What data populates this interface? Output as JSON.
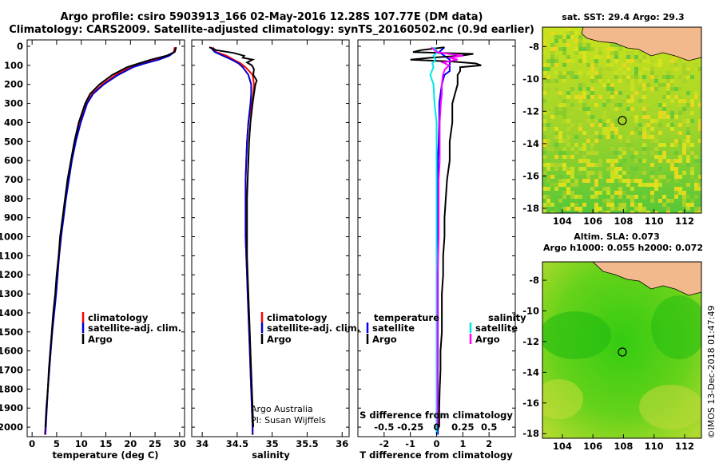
{
  "header": {
    "title_line1": "Argo profile: csiro 5903913_166 02-May-2016 12.28S 107.77E (DM data)",
    "title_line2": "Climatology: CARS2009. Satellite-adjusted climatology: synTS_20160502.nc (0.9d earlier)"
  },
  "credit": {
    "institution_stamp": "©IMOS 13-Dec-2018 01:47:49",
    "note_line1": "Argo Australia",
    "note_line2": "PI: Susan Wijffels"
  },
  "colors": {
    "climatology": "#ff0000",
    "satellite": "#0000cc",
    "argo": "#000000",
    "t_satellite": "#0000ff",
    "s_satellite": "#00e5e5",
    "s_argo": "#ff00ff",
    "land": "#f2b98c",
    "float_marker": "#4a7a2a"
  },
  "chart_data": [
    {
      "type": "line",
      "id": "temperature-profile",
      "xlabel": "temperature (deg C)",
      "ylabel": "",
      "xlim": [
        -1,
        31
      ],
      "ylim": [
        2050,
        0
      ],
      "xticks": [
        0,
        5,
        10,
        15,
        20,
        25,
        30
      ],
      "yticks": [
        0,
        100,
        200,
        300,
        400,
        500,
        600,
        700,
        800,
        900,
        1000,
        1100,
        1200,
        1300,
        1400,
        1500,
        1600,
        1700,
        1800,
        1900,
        2000
      ],
      "legend": [
        "climatology",
        "satellite-adj. clim.",
        "Argo"
      ],
      "series": [
        {
          "name": "climatology",
          "color_key": "climatology",
          "depth": [
            5,
            30,
            50,
            70,
            90,
            110,
            150,
            200,
            250,
            300,
            400,
            500,
            600,
            700,
            800,
            900,
            1000,
            1100,
            1200,
            1300,
            1400,
            1500,
            1600,
            1700,
            1800,
            1900,
            2000,
            2040
          ],
          "values": [
            29.0,
            28.8,
            27.6,
            25.3,
            22.4,
            20.0,
            17.0,
            14.3,
            12.2,
            11.1,
            9.8,
            8.8,
            8.0,
            7.4,
            6.8,
            6.3,
            5.9,
            5.5,
            5.1,
            4.8,
            4.4,
            4.1,
            3.8,
            3.5,
            3.2,
            3.0,
            2.7,
            2.6
          ]
        },
        {
          "name": "satellite-adj. clim.",
          "color_key": "satellite",
          "depth": [
            5,
            30,
            50,
            70,
            90,
            110,
            150,
            200,
            250,
            300,
            400,
            500,
            600,
            700,
            800,
            900,
            1000,
            1100,
            1200,
            1300,
            1400,
            1500,
            1600,
            1700,
            1800,
            1900,
            2000,
            2040
          ],
          "values": [
            29.3,
            28.9,
            27.9,
            25.8,
            22.9,
            20.5,
            17.5,
            14.6,
            12.4,
            11.2,
            9.9,
            8.9,
            8.1,
            7.5,
            6.9,
            6.4,
            5.9,
            5.5,
            5.2,
            4.9,
            4.5,
            4.1,
            3.8,
            3.5,
            3.2,
            3.0,
            2.8,
            2.7
          ]
        },
        {
          "name": "Argo",
          "color_key": "argo",
          "depth": [
            5,
            30,
            50,
            70,
            90,
            110,
            150,
            200,
            250,
            300,
            400,
            500,
            600,
            700,
            800,
            900,
            1000,
            1100,
            1200,
            1300,
            1400,
            1500,
            1600,
            1700,
            1800,
            1900,
            2000
          ],
          "values": [
            29.3,
            29.0,
            27.3,
            24.2,
            21.7,
            19.3,
            16.3,
            13.7,
            11.8,
            10.8,
            9.5,
            8.6,
            7.9,
            7.2,
            6.7,
            6.2,
            5.7,
            5.4,
            5.0,
            4.7,
            4.3,
            4.0,
            3.7,
            3.4,
            3.2,
            2.9,
            2.7
          ]
        }
      ]
    },
    {
      "type": "line",
      "id": "salinity-profile",
      "xlabel": "salinity",
      "ylabel": "",
      "xlim": [
        33.85,
        36.1
      ],
      "ylim": [
        2050,
        0
      ],
      "xticks": [
        34,
        34.5,
        35,
        35.5,
        36
      ],
      "legend": [
        "climatology",
        "satellite-adj. clim.",
        "Argo"
      ],
      "series": [
        {
          "name": "climatology",
          "color_key": "climatology",
          "depth": [
            5,
            30,
            50,
            70,
            90,
            110,
            150,
            200,
            250,
            300,
            400,
            500,
            600,
            700,
            800,
            900,
            1000,
            1100,
            1200,
            1300,
            1400,
            1500,
            1600,
            1700,
            1800,
            1900,
            2000,
            2040
          ],
          "values": [
            34.15,
            34.2,
            34.35,
            34.45,
            34.55,
            34.62,
            34.72,
            34.74,
            34.73,
            34.71,
            34.66,
            34.64,
            34.63,
            34.62,
            34.62,
            34.62,
            34.62,
            34.63,
            34.64,
            34.65,
            34.66,
            34.67,
            34.68,
            34.69,
            34.7,
            34.71,
            34.72,
            34.72
          ]
        },
        {
          "name": "satellite-adj. clim.",
          "color_key": "satellite",
          "depth": [
            5,
            30,
            50,
            70,
            90,
            110,
            150,
            200,
            250,
            300,
            400,
            500,
            600,
            700,
            800,
            900,
            1000,
            1100,
            1200,
            1300,
            1400,
            1500,
            1600,
            1700,
            1800,
            1900,
            2000,
            2040
          ],
          "values": [
            34.12,
            34.18,
            34.3,
            34.42,
            34.52,
            34.58,
            34.66,
            34.7,
            34.7,
            34.69,
            34.66,
            34.64,
            34.63,
            34.62,
            34.62,
            34.62,
            34.62,
            34.63,
            34.64,
            34.65,
            34.66,
            34.67,
            34.68,
            34.69,
            34.7,
            34.71,
            34.72,
            34.72
          ]
        },
        {
          "name": "Argo",
          "color_key": "argo",
          "depth": [
            5,
            20,
            35,
            50,
            60,
            70,
            85,
            100,
            120,
            150,
            180,
            200,
            250,
            300,
            400,
            500,
            600,
            700,
            800,
            900,
            1000,
            1100,
            1200,
            1300,
            1400,
            1500,
            1600,
            1700,
            1800,
            1900,
            2000
          ],
          "values": [
            34.1,
            34.2,
            34.45,
            34.6,
            34.58,
            34.72,
            34.64,
            34.71,
            34.74,
            34.73,
            34.78,
            34.76,
            34.74,
            34.72,
            34.69,
            34.67,
            34.66,
            34.65,
            34.64,
            34.64,
            34.64,
            34.64,
            34.65,
            34.66,
            34.67,
            34.68,
            34.69,
            34.7,
            34.71,
            34.72,
            34.73
          ]
        }
      ]
    },
    {
      "type": "line",
      "id": "difference-profile",
      "xlabel": "T difference from climatology",
      "xlabel_top": "S difference from climatology",
      "xlim": [
        -3,
        3
      ],
      "ylim": [
        2050,
        0
      ],
      "xticks": [
        -2,
        -1,
        0,
        1,
        2
      ],
      "s_xticks_labels": [
        "-0.5",
        "-0.25",
        "0",
        "0.25",
        "0.5"
      ],
      "s_xticks_values": [
        -0.5,
        -0.25,
        0,
        0.25,
        0.5
      ],
      "s_xlim": [
        -0.75,
        0.75
      ],
      "legend_temperature_title": "temperature",
      "legend_salinity_title": "salinity",
      "legend_temperature": [
        "satellite",
        "Argo"
      ],
      "legend_salinity": [
        "satellite",
        "Argo"
      ],
      "series": [
        {
          "name": "satellite",
          "group": "temperature",
          "color_key": "t_satellite",
          "depth": [
            5,
            30,
            50,
            70,
            90,
            110,
            130,
            150,
            200,
            250,
            300,
            400,
            500,
            600,
            700,
            800,
            1000,
            1200,
            1400,
            1600,
            1800,
            2000,
            2040
          ],
          "values": [
            0.3,
            0.1,
            0.3,
            0.5,
            0.5,
            0.5,
            0.5,
            0.3,
            0.2,
            0.15,
            0.1,
            0.1,
            0.08,
            0.05,
            0.05,
            0.05,
            0.05,
            0.05,
            0.05,
            0.05,
            0.05,
            0.05,
            0.05
          ]
        },
        {
          "name": "Argo",
          "group": "temperature",
          "color_key": "argo",
          "depth": [
            5,
            20,
            30,
            40,
            50,
            60,
            70,
            80,
            90,
            100,
            110,
            130,
            150,
            200,
            250,
            300,
            400,
            500,
            600,
            700,
            800,
            900,
            1000,
            1100,
            1200,
            1300,
            1400,
            1500,
            1600,
            1700,
            1800,
            1900,
            2000
          ],
          "values": [
            0.3,
            -0.6,
            -0.9,
            1.4,
            0.9,
            -0.2,
            -1.0,
            0.6,
            1.5,
            1.7,
            0.9,
            0.9,
            0.8,
            0.8,
            0.7,
            0.6,
            0.6,
            0.5,
            0.5,
            0.4,
            0.35,
            0.3,
            0.3,
            0.25,
            0.25,
            0.2,
            0.2,
            0.2,
            0.15,
            0.15,
            0.12,
            0.1,
            0.1
          ]
        },
        {
          "name": "satellite",
          "group": "salinity",
          "color_key": "s_satellite",
          "depth": [
            5,
            30,
            50,
            70,
            90,
            110,
            150,
            200,
            300,
            400,
            500,
            700,
            1000,
            1500,
            2000,
            2040
          ],
          "values": [
            -0.03,
            0.01,
            -0.03,
            -0.01,
            -0.04,
            -0.03,
            -0.06,
            -0.03,
            -0.02,
            0.0,
            0.0,
            0.0,
            0.0,
            0.0,
            0.0,
            0.0
          ]
        },
        {
          "name": "Argo",
          "group": "salinity",
          "color_key": "s_argo",
          "depth": [
            5,
            30,
            50,
            60,
            70,
            85,
            100,
            120,
            150,
            200,
            250,
            300,
            400,
            500,
            600,
            700,
            800,
            1000,
            1200,
            1400,
            1600,
            1800,
            2000
          ],
          "values": [
            -0.05,
            0.0,
            0.25,
            0.12,
            0.2,
            0.06,
            0.12,
            0.08,
            0.06,
            0.05,
            0.05,
            0.04,
            0.03,
            0.03,
            0.03,
            0.02,
            0.02,
            0.02,
            0.01,
            0.01,
            0.01,
            0.01,
            0.01
          ]
        }
      ]
    },
    {
      "type": "heatmap",
      "id": "sst-map",
      "title": "sat. SST: 29.4  Argo: 29.3",
      "xlim": [
        102.7,
        113.1
      ],
      "ylim": [
        -18.3,
        -6.8
      ],
      "xticks": [
        104,
        106,
        108,
        110,
        112
      ],
      "yticks": [
        -8,
        -10,
        -12,
        -14,
        -16,
        -18
      ],
      "float_position": {
        "lon": 107.77,
        "lat": -12.28
      }
    },
    {
      "type": "heatmap",
      "id": "sla-map",
      "title_line1": "Altim. SLA: 0.073",
      "title_line2": "Argo h1000: 0.055 h2000: 0.072",
      "xlim": [
        102.7,
        113.1
      ],
      "ylim": [
        -18.3,
        -6.8
      ],
      "xticks": [
        104,
        106,
        108,
        110,
        112
      ],
      "yticks": [
        -8,
        -10,
        -12,
        -14,
        -16,
        -18
      ],
      "float_position": {
        "lon": 107.77,
        "lat": -12.28
      }
    }
  ]
}
